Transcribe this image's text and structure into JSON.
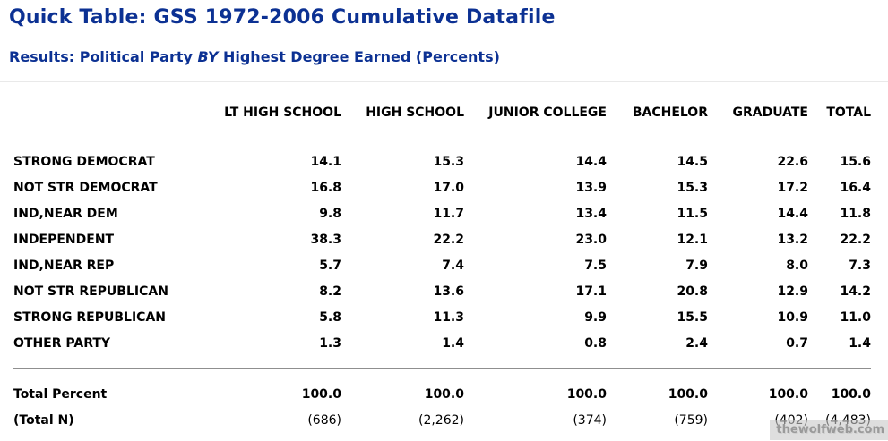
{
  "header": {
    "title": "Quick Table: GSS 1972-2006 Cumulative Datafile",
    "subtitle_prefix": "Results: Political Party ",
    "subtitle_by": "BY",
    "subtitle_suffix": " Highest Degree Earned (Percents)"
  },
  "chart_data": {
    "type": "table",
    "title": "Political Party BY Highest Degree Earned (Percents)",
    "row_dimension": "Political Party",
    "column_dimension": "Highest Degree Earned",
    "columns": [
      "LT HIGH SCHOOL",
      "HIGH SCHOOL",
      "JUNIOR COLLEGE",
      "BACHELOR",
      "GRADUATE",
      "TOTAL"
    ],
    "rows": [
      {
        "label": "STRONG DEMOCRAT",
        "values": [
          "14.1",
          "15.3",
          "14.4",
          "14.5",
          "22.6",
          "15.6"
        ]
      },
      {
        "label": "NOT STR DEMOCRAT",
        "values": [
          "16.8",
          "17.0",
          "13.9",
          "15.3",
          "17.2",
          "16.4"
        ]
      },
      {
        "label": "IND,NEAR DEM",
        "values": [
          "9.8",
          "11.7",
          "13.4",
          "11.5",
          "14.4",
          "11.8"
        ]
      },
      {
        "label": "INDEPENDENT",
        "values": [
          "38.3",
          "22.2",
          "23.0",
          "12.1",
          "13.2",
          "22.2"
        ]
      },
      {
        "label": "IND,NEAR REP",
        "values": [
          "5.7",
          "7.4",
          "7.5",
          "7.9",
          "8.0",
          "7.3"
        ]
      },
      {
        "label": "NOT STR REPUBLICAN",
        "values": [
          "8.2",
          "13.6",
          "17.1",
          "20.8",
          "12.9",
          "14.2"
        ]
      },
      {
        "label": "STRONG REPUBLICAN",
        "values": [
          "5.8",
          "11.3",
          "9.9",
          "15.5",
          "10.9",
          "11.0"
        ]
      },
      {
        "label": "OTHER PARTY",
        "values": [
          "1.3",
          "1.4",
          "0.8",
          "2.4",
          "0.7",
          "1.4"
        ]
      }
    ],
    "footer": [
      {
        "label": "Total Percent",
        "values": [
          "100.0",
          "100.0",
          "100.0",
          "100.0",
          "100.0",
          "100.0"
        ]
      },
      {
        "label": "(Total N)",
        "values": [
          "(686)",
          "(2,262)",
          "(374)",
          "(759)",
          "(402)",
          "(4,483)"
        ]
      }
    ]
  },
  "colors": {
    "title_blue": "#0c3193",
    "rule_gray": "#8f8f8f",
    "table_text": "#000000",
    "watermark_gray": "#9a9a9a"
  },
  "watermark": {
    "label": "thewolfweb.com"
  }
}
